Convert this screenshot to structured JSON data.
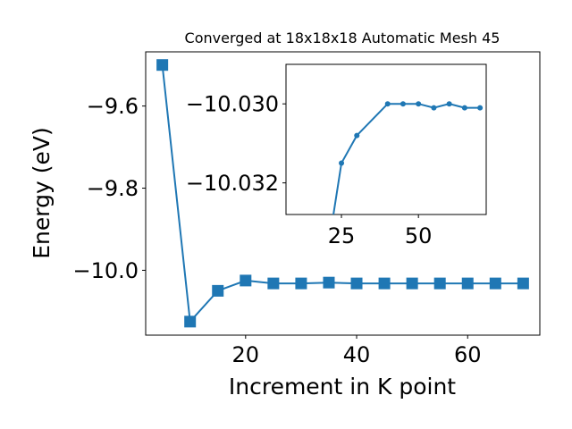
{
  "chart_data": [
    {
      "type": "line",
      "title": "Converged at 18x18x18 Automatic Mesh 45",
      "xlabel": "Increment in K point",
      "ylabel": "Energy (eV)",
      "xlim": [
        2,
        73
      ],
      "ylim": [
        -10.158,
        -9.468
      ],
      "xticks": [
        20,
        40,
        60
      ],
      "yticks": [
        -9.6,
        -9.8,
        -10.0
      ],
      "ytick_labels": [
        "−9.6",
        "−9.8",
        "−10.0"
      ],
      "marker": "square",
      "color": "#1f77b4",
      "grid": false,
      "series": [
        {
          "x": [
            5,
            10,
            15,
            20,
            25,
            30,
            35,
            40,
            45,
            50,
            55,
            60,
            65,
            70
          ],
          "y": [
            -9.5,
            -10.125,
            -10.05,
            -10.025,
            -10.032,
            -10.032,
            -10.03,
            -10.032,
            -10.032,
            -10.032,
            -10.032,
            -10.032,
            -10.032,
            -10.032
          ]
        }
      ]
    },
    {
      "type": "line",
      "title": "",
      "xlabel": "",
      "ylabel": "",
      "xlim": [
        7,
        72
      ],
      "ylim": [
        -10.0328,
        -10.029
      ],
      "xticks": [
        25,
        50
      ],
      "yticks": [
        -10.032,
        -10.03
      ],
      "ytick_labels": [
        "−10.032",
        "−10.030"
      ],
      "marker": "circle",
      "color": "#1f77b4",
      "grid": false,
      "series": [
        {
          "x": [
            20,
            25,
            30,
            40,
            45,
            50,
            55,
            60,
            65,
            70
          ],
          "y": [
            -10.034,
            -10.0315,
            -10.0308,
            -10.03,
            -10.03,
            -10.03,
            -10.0301,
            -10.03,
            -10.0301,
            -10.0301
          ]
        }
      ]
    }
  ]
}
